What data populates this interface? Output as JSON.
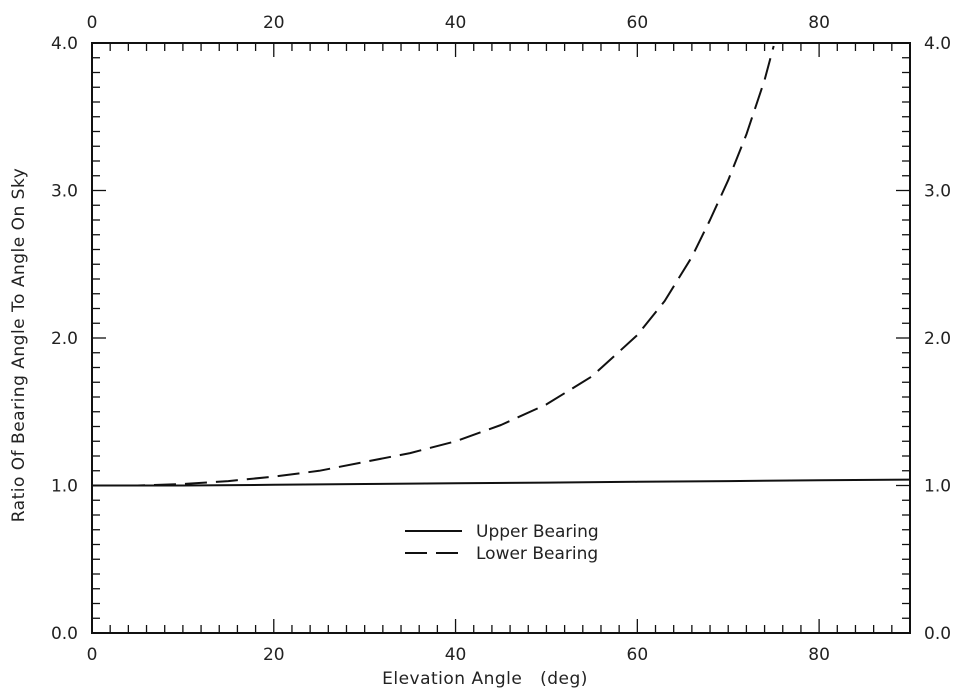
{
  "chart_data": {
    "type": "line",
    "title": "",
    "xlabel": "Elevation Angle   (deg)",
    "ylabel": "Ratio Of Bearing Angle To Angle On Sky",
    "xlim": [
      0,
      90
    ],
    "ylim": [
      0.0,
      4.0
    ],
    "x_ticks": [
      0,
      20,
      40,
      60,
      80
    ],
    "x_tick_labels": [
      "0",
      "20",
      "40",
      "60",
      "80"
    ],
    "y_ticks": [
      0.0,
      1.0,
      2.0,
      3.0,
      4.0
    ],
    "y_tick_labels": [
      "0.0",
      "1.0",
      "2.0",
      "3.0",
      "4.0"
    ],
    "grid": false,
    "legend_position": "center-bottom",
    "series": [
      {
        "name": "Upper Bearing",
        "style": "solid",
        "color": "#111111",
        "x": [
          0,
          10,
          20,
          30,
          40,
          50,
          60,
          70,
          80,
          90
        ],
        "y": [
          1.0,
          1.0,
          1.005,
          1.01,
          1.015,
          1.02,
          1.025,
          1.03,
          1.035,
          1.04
        ]
      },
      {
        "name": "Lower Bearing",
        "style": "dashed",
        "color": "#111111",
        "x": [
          0,
          5,
          10,
          15,
          20,
          25,
          30,
          35,
          40,
          45,
          50,
          55,
          60,
          63,
          66,
          68,
          70,
          72,
          74,
          75
        ],
        "y": [
          1.0,
          1.0,
          1.01,
          1.03,
          1.06,
          1.1,
          1.16,
          1.22,
          1.3,
          1.41,
          1.55,
          1.74,
          2.02,
          2.25,
          2.55,
          2.8,
          3.07,
          3.38,
          3.75,
          3.98
        ]
      }
    ]
  }
}
